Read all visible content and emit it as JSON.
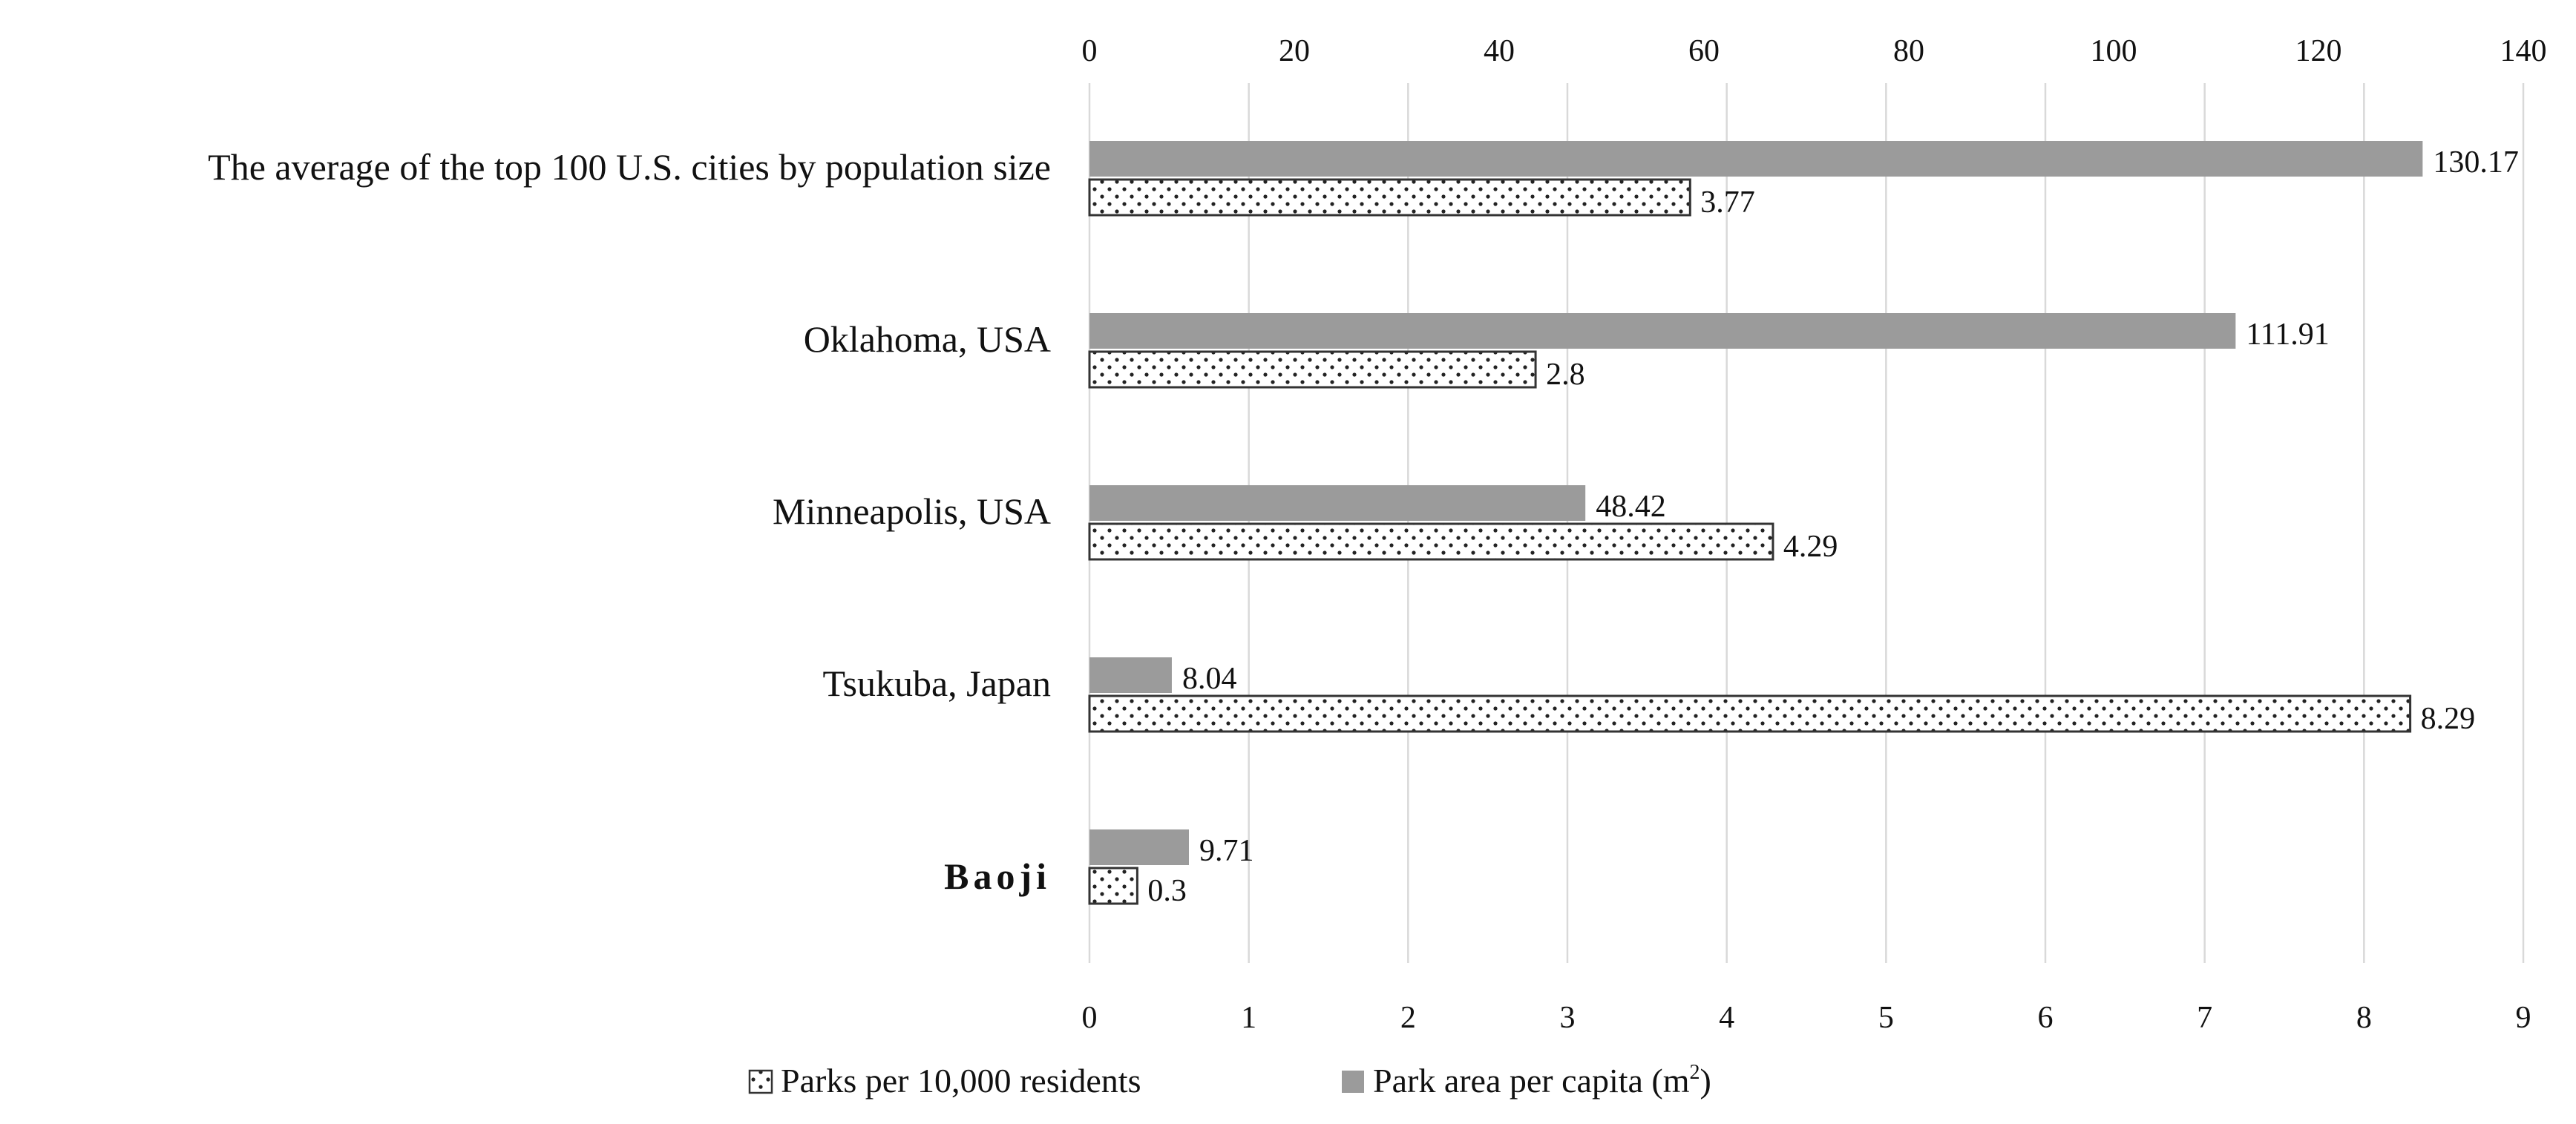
{
  "chart_data": {
    "type": "bar",
    "orientation": "horizontal",
    "categories": [
      "The average of the top 100 U.S. cities by population size",
      "Oklahoma, USA",
      "Minneapolis, USA",
      "Tsukuba, Japan",
      "Baoji"
    ],
    "bold_categories": [
      "Baoji"
    ],
    "series": [
      {
        "name": "Park area per capita (m²)",
        "legend_text": "Park area per capita (m",
        "legend_sup": "2",
        "legend_suffix": ")",
        "axis": "top",
        "color": "#9b9b9b",
        "pattern": "solid",
        "values": [
          130.17,
          111.91,
          48.42,
          8.04,
          9.71
        ],
        "labels": [
          "130.17",
          "111.91",
          "48.42",
          "8.04",
          "9.71"
        ]
      },
      {
        "name": "Parks per 10,000 residents",
        "legend_text": "Parks per 10,000 residents",
        "axis": "bottom",
        "color": "#ffffff",
        "pattern": "dotted",
        "values": [
          3.77,
          2.8,
          4.29,
          8.29,
          0.3
        ],
        "labels": [
          "3.77",
          "2.8",
          "4.29",
          "8.29",
          "0.3"
        ]
      }
    ],
    "top_axis": {
      "range": [
        0,
        140
      ],
      "ticks": [
        0,
        20,
        40,
        60,
        80,
        100,
        120,
        140
      ],
      "tick_labels": [
        "0",
        "20",
        "40",
        "60",
        "80",
        "100",
        "120",
        "140"
      ]
    },
    "bottom_axis": {
      "range": [
        0,
        9
      ],
      "ticks": [
        0,
        1,
        2,
        3,
        4,
        5,
        6,
        7,
        8,
        9
      ],
      "tick_labels": [
        "0",
        "1",
        "2",
        "3",
        "4",
        "5",
        "6",
        "7",
        "8",
        "9"
      ]
    },
    "grid": true,
    "legend_position": "bottom-center",
    "legend_order": [
      "Parks per 10,000 residents",
      "Park area per capita (m²)"
    ],
    "title": "",
    "xlabel": "",
    "ylabel": "",
    "colors": {
      "grid": "#d9d9d9",
      "bar_gray": "#9b9b9b",
      "bar_outline": "#333333",
      "dot": "#222222",
      "text": "#111111"
    }
  }
}
